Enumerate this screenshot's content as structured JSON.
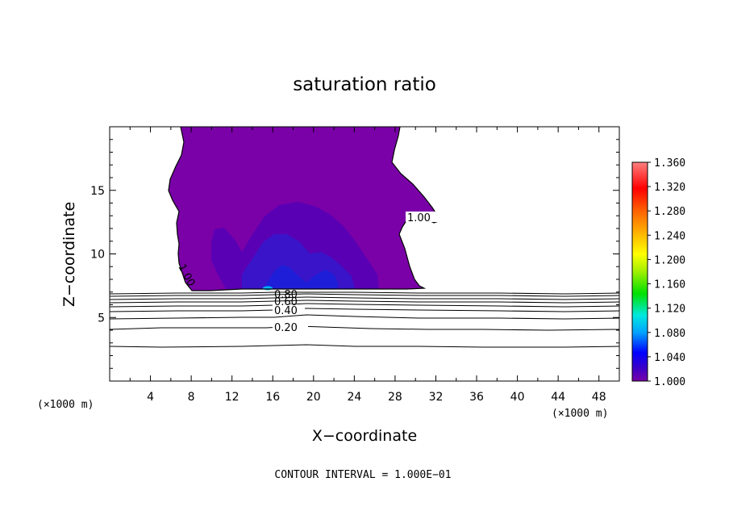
{
  "chart_data": {
    "type": "heatmap",
    "title": "saturation ratio",
    "xlabel": "X−coordinate",
    "ylabel": "Z−coordinate",
    "x_unit_left": "(×1000 m)",
    "x_unit_right": "(×1000 m)",
    "xlim": [
      0,
      50
    ],
    "ylim": [
      0,
      20
    ],
    "x_ticks": [
      4,
      8,
      12,
      16,
      20,
      24,
      28,
      32,
      36,
      40,
      44,
      48
    ],
    "y_ticks": [
      5,
      10,
      15
    ],
    "colorbar": {
      "min": 1.0,
      "max": 1.36,
      "ticks": [
        "1.360",
        "1.320",
        "1.280",
        "1.240",
        "1.200",
        "1.160",
        "1.120",
        "1.080",
        "1.040",
        "1.000"
      ],
      "stops": [
        "#7a00a8",
        "#3a00c8",
        "#0000ff",
        "#00a0ff",
        "#00e8e0",
        "#00e000",
        "#a0f000",
        "#ffff00",
        "#ffb000",
        "#ff6000",
        "#ff0000",
        "#ff8080"
      ]
    },
    "contour_interval": "CONTOUR INTERVAL =  1.000E−01",
    "contour_levels": [
      0.1,
      0.2,
      0.3,
      0.4,
      0.5,
      0.6,
      0.7,
      0.8,
      0.9,
      1.0
    ],
    "contour_labels": [
      "0.20",
      "0.40",
      "0.60",
      "0.80",
      "1.00",
      "1.00"
    ],
    "supersaturated_region": {
      "value_range": [
        1.0,
        1.1
      ],
      "x_extent": [
        7.2,
        31.5
      ],
      "z_extent": [
        7.1,
        20.0
      ],
      "max_location": {
        "x": 15.5,
        "z": 7.3
      }
    }
  },
  "colors": {
    "cloud": "#7a00a8",
    "cloud_mid": "#5a00b4",
    "cloud_deep": "#3a14c8",
    "cloud_core": "#1e1ed8",
    "peak": "#00b4ff"
  }
}
